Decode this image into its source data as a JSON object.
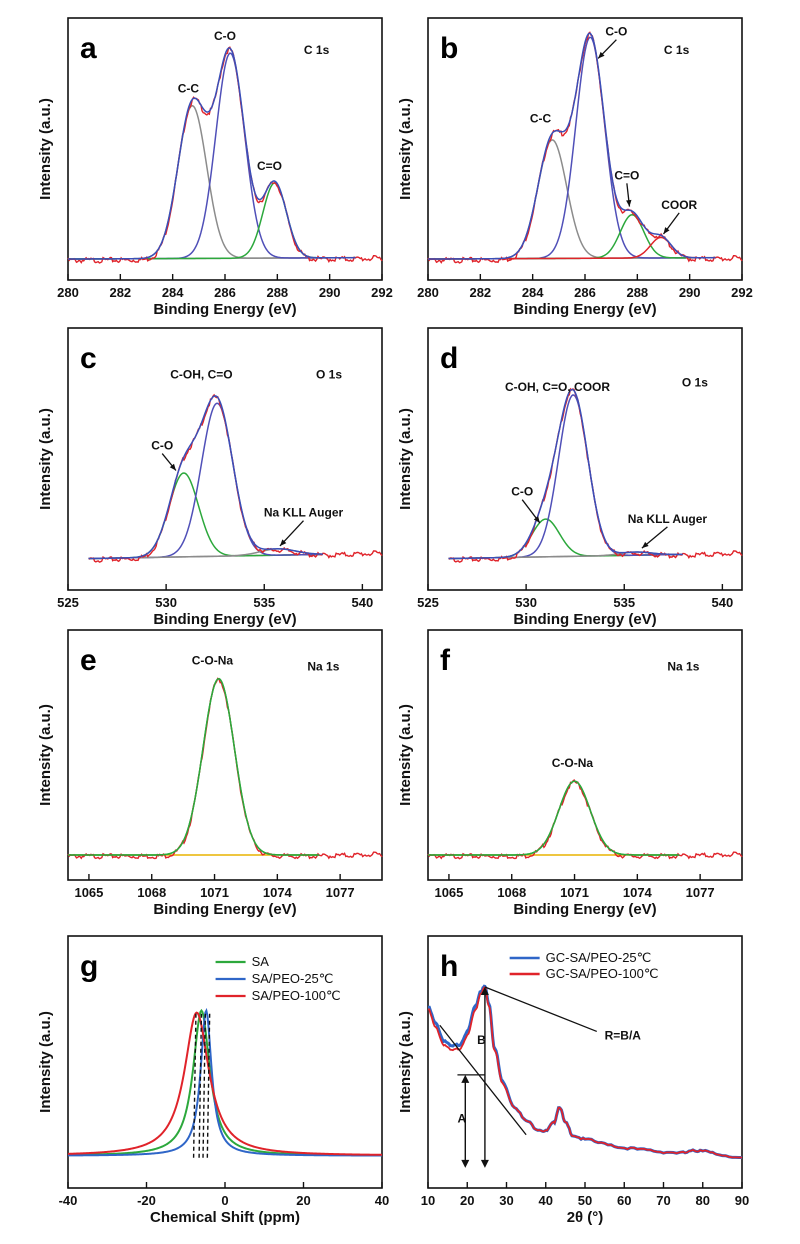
{
  "chart_data": [
    {
      "id": "a",
      "type": "line",
      "panel_label": "a",
      "title": "C 1s",
      "xlabel": "Binding Energy (eV)",
      "ylabel": "Intensity (a.u.)",
      "xlim": [
        280,
        292
      ],
      "ylim": [
        0,
        1.0
      ],
      "xticks": [
        280,
        282,
        284,
        286,
        288,
        290,
        292
      ],
      "xtick_labels": [
        "280",
        "282",
        "284",
        "286",
        "288",
        "290",
        "292"
      ],
      "baseline": {
        "x": [
          280,
          291
        ],
        "y": [
          0.0,
          0.006
        ]
      },
      "peaks": [
        {
          "name": "C-C",
          "center": 284.75,
          "height": 0.67,
          "width": 0.55,
          "color": "#8c8c8c"
        },
        {
          "name": "C-O",
          "center": 286.2,
          "height": 0.9,
          "width": 0.55,
          "color": "#5050b8"
        },
        {
          "name": "C=O",
          "center": 287.9,
          "height": 0.33,
          "width": 0.45,
          "color": "#2ca83c"
        }
      ],
      "envelope_color": "#3a4fb8",
      "raw_color": "#e0232a",
      "raw_range": [
        280,
        292
      ],
      "raw_tail_slope": 0.004,
      "annotations": [
        {
          "text": "C-C",
          "x": 284.6,
          "y": 0.73,
          "arrow": false
        },
        {
          "text": "C-O",
          "x": 286.0,
          "y": 0.96,
          "arrow": false
        },
        {
          "text": "C=O",
          "x": 287.7,
          "y": 0.39,
          "arrow": false
        },
        {
          "text": "C 1s",
          "x": 289.5,
          "y": 0.9,
          "arrow": false
        }
      ]
    },
    {
      "id": "b",
      "type": "line",
      "panel_label": "b",
      "title": "C 1s",
      "xlabel": "Binding Energy (eV)",
      "ylabel": "Intensity (a.u.)",
      "xlim": [
        280,
        292
      ],
      "ylim": [
        0,
        1.0
      ],
      "xticks": [
        280,
        282,
        284,
        286,
        288,
        290,
        292
      ],
      "xtick_labels": [
        "280",
        "282",
        "284",
        "286",
        "288",
        "290",
        "292"
      ],
      "baseline": {
        "x": [
          280,
          291
        ],
        "y": [
          0.0,
          0.006
        ]
      },
      "peaks": [
        {
          "name": "C-C",
          "center": 284.75,
          "height": 0.52,
          "width": 0.55,
          "color": "#8c8c8c"
        },
        {
          "name": "C-O",
          "center": 286.2,
          "height": 0.97,
          "width": 0.55,
          "color": "#5050b8"
        },
        {
          "name": "C=O",
          "center": 287.8,
          "height": 0.19,
          "width": 0.45,
          "color": "#2ca83c"
        },
        {
          "name": "COOR",
          "center": 288.9,
          "height": 0.09,
          "width": 0.4,
          "color": "#e0232a"
        }
      ],
      "envelope_color": "#3a4fb8",
      "raw_color": "#e0232a",
      "raw_range": [
        280,
        292
      ],
      "raw_tail_slope": 0.004,
      "annotations": [
        {
          "text": "C-C",
          "x": 284.3,
          "y": 0.6,
          "arrow": false
        },
        {
          "text": "C-O",
          "x": 287.2,
          "y": 0.98,
          "arrow": true,
          "ax": 286.5,
          "ay": 0.88
        },
        {
          "text": "C=O",
          "x": 287.6,
          "y": 0.35,
          "arrow": true,
          "ax": 287.7,
          "ay": 0.23
        },
        {
          "text": "COOR",
          "x": 289.6,
          "y": 0.22,
          "arrow": true,
          "ax": 289.0,
          "ay": 0.11
        },
        {
          "text": "C 1s",
          "x": 289.5,
          "y": 0.9,
          "arrow": false
        }
      ]
    },
    {
      "id": "c",
      "type": "line",
      "panel_label": "c",
      "title": "O 1s",
      "xlabel": "Binding Energy (eV)",
      "ylabel": "Intensity (a.u.)",
      "xlim": [
        525,
        541
      ],
      "ylim": [
        0,
        1.0
      ],
      "xticks": [
        525,
        530,
        535,
        540
      ],
      "xtick_labels": [
        "525",
        "530",
        "535",
        "540"
      ],
      "baseline": {
        "x": [
          526,
          538
        ],
        "y": [
          0.0,
          0.02
        ]
      },
      "peaks": [
        {
          "name": "C-O",
          "center": 530.9,
          "height": 0.4,
          "width": 0.75,
          "color": "#2ca83c"
        },
        {
          "name": "C-OH, C=O",
          "center": 532.6,
          "height": 0.73,
          "width": 0.8,
          "color": "#5050b8"
        },
        {
          "name": "Na KLL Auger",
          "center": 535.7,
          "height": 0.03,
          "width": 0.9,
          "color": "#8c8c8c"
        }
      ],
      "envelope_color": "#3a4fb8",
      "raw_color": "#e0232a",
      "raw_range": [
        526,
        541
      ],
      "raw_tail_slope": 0.004,
      "annotations": [
        {
          "text": "C-OH, C=O",
          "x": 531.8,
          "y": 0.86,
          "arrow": false
        },
        {
          "text": "O 1s",
          "x": 538.3,
          "y": 0.86,
          "arrow": false
        },
        {
          "text": "C-O",
          "x": 529.8,
          "y": 0.52,
          "arrow": true,
          "ax": 530.5,
          "ay": 0.42
        },
        {
          "text": "Na KLL Auger",
          "x": 537.0,
          "y": 0.2,
          "arrow": true,
          "ax": 535.8,
          "ay": 0.06
        }
      ]
    },
    {
      "id": "d",
      "type": "line",
      "panel_label": "d",
      "title": "O 1s",
      "xlabel": "Binding Energy (eV)",
      "ylabel": "Intensity (a.u.)",
      "xlim": [
        525,
        541
      ],
      "ylim": [
        0,
        1.0
      ],
      "xticks": [
        525,
        530,
        535,
        540
      ],
      "xtick_labels": [
        "525",
        "530",
        "535",
        "540"
      ],
      "baseline": {
        "x": [
          526,
          538
        ],
        "y": [
          0.0,
          0.02
        ]
      },
      "peaks": [
        {
          "name": "C-O",
          "center": 531.0,
          "height": 0.18,
          "width": 0.7,
          "color": "#2ca83c"
        },
        {
          "name": "C-OH, C=O, COOR",
          "center": 532.4,
          "height": 0.77,
          "width": 0.75,
          "color": "#5050b8"
        },
        {
          "name": "Na KLL Auger",
          "center": 535.6,
          "height": 0.015,
          "width": 0.8,
          "color": "#8c8c8c"
        }
      ],
      "envelope_color": "#3a4fb8",
      "raw_color": "#e0232a",
      "raw_range": [
        526,
        541
      ],
      "raw_tail_slope": 0.004,
      "annotations": [
        {
          "text": "C-OH, C=O, COOR",
          "x": 531.6,
          "y": 0.8,
          "arrow": false
        },
        {
          "text": "O 1s",
          "x": 538.6,
          "y": 0.82,
          "arrow": false
        },
        {
          "text": "C-O",
          "x": 529.8,
          "y": 0.3,
          "arrow": true,
          "ax": 530.7,
          "ay": 0.17
        },
        {
          "text": "Na KLL Auger",
          "x": 537.2,
          "y": 0.17,
          "arrow": true,
          "ax": 535.9,
          "ay": 0.05
        }
      ]
    },
    {
      "id": "e",
      "type": "line",
      "panel_label": "e",
      "title": "Na 1s",
      "xlabel": "Binding Energy (eV)",
      "ylabel": "Intensity (a.u.)",
      "xlim": [
        1064,
        1079
      ],
      "ylim": [
        0,
        1.0
      ],
      "xticks": [
        1065,
        1068,
        1071,
        1074,
        1077
      ],
      "xtick_labels": [
        "1065",
        "1068",
        "1071",
        "1074",
        "1077"
      ],
      "baseline": {
        "x": [
          1064,
          1076
        ],
        "y": [
          0.0,
          0.0
        ]
      },
      "peaks": [
        {
          "name": "C-O-Na",
          "center": 1071.2,
          "height": 0.86,
          "width": 0.75,
          "color": "#2ca83c"
        }
      ],
      "envelope_color": "#2ca83c",
      "raw_color": "#e0232a",
      "raw_range": [
        1064,
        1079
      ],
      "raw_tail_slope": 0.003,
      "annotations": [
        {
          "text": "C-O-Na",
          "x": 1070.9,
          "y": 0.93,
          "arrow": false
        },
        {
          "text": "Na 1s",
          "x": 1076.2,
          "y": 0.9,
          "arrow": false
        }
      ]
    },
    {
      "id": "f",
      "type": "line",
      "panel_label": "f",
      "title": "Na 1s",
      "xlabel": "Binding Energy (eV)",
      "ylabel": "Intensity (a.u.)",
      "xlim": [
        1064,
        1079
      ],
      "ylim": [
        0,
        1.0
      ],
      "xticks": [
        1065,
        1068,
        1071,
        1074,
        1077
      ],
      "xtick_labels": [
        "1065",
        "1068",
        "1071",
        "1074",
        "1077"
      ],
      "baseline": {
        "x": [
          1064,
          1076
        ],
        "y": [
          0.0,
          0.0
        ]
      },
      "peaks": [
        {
          "name": "C-O-Na",
          "center": 1071.0,
          "height": 0.36,
          "width": 0.75,
          "color": "#2ca83c"
        }
      ],
      "envelope_color": "#2ca83c",
      "raw_color": "#e0232a",
      "raw_range": [
        1064,
        1079
      ],
      "raw_tail_slope": 0.003,
      "annotations": [
        {
          "text": "C-O-Na",
          "x": 1070.9,
          "y": 0.43,
          "arrow": false
        },
        {
          "text": "Na 1s",
          "x": 1076.2,
          "y": 0.9,
          "arrow": false
        }
      ]
    },
    {
      "id": "g",
      "type": "line",
      "panel_label": "g",
      "xlabel": "Chemical Shift (ppm)",
      "ylabel": "Intensity (a.u.)",
      "xlim": [
        -40,
        40
      ],
      "ylim": [
        0,
        1.0
      ],
      "xticks": [
        -40,
        -20,
        0,
        20,
        40
      ],
      "xtick_labels": [
        "-40",
        "-20",
        "0",
        "20",
        "40"
      ],
      "series": [
        {
          "name": "SA",
          "center": -6.0,
          "height": 0.72,
          "width": 2.6,
          "color": "#2ca83c"
        },
        {
          "name": "SA/PEO-25℃",
          "center": -4.8,
          "height": 0.72,
          "width": 1.7,
          "color": "#2f66c8"
        },
        {
          "name": "SA/PEO-100℃",
          "center": -7.2,
          "height": 0.71,
          "width": 3.8,
          "color": "#e0232a"
        }
      ],
      "dashed_markers": [
        -8.0,
        -6.6,
        -5.6,
        -4.5
      ],
      "legend": [
        "SA",
        "SA/PEO-25℃",
        "SA/PEO-100℃"
      ],
      "legend_location": "top-right"
    },
    {
      "id": "h",
      "type": "line",
      "panel_label": "h",
      "xlabel": "2θ (°)",
      "ylabel": "Intensity (a.u.)",
      "xlim": [
        10,
        90
      ],
      "ylim": [
        0,
        1.0
      ],
      "xticks": [
        10,
        20,
        30,
        40,
        50,
        60,
        70,
        80,
        90
      ],
      "xtick_labels": [
        "10",
        "20",
        "30",
        "40",
        "50",
        "60",
        "70",
        "80",
        "90"
      ],
      "series": [
        {
          "name": "GC-SA/PEO-25℃",
          "color": "#2f66c8",
          "x": [
            10,
            12,
            14,
            16,
            18,
            20,
            22,
            23.5,
            24.5,
            25.5,
            27,
            29,
            32,
            35,
            38,
            40,
            42,
            43.5,
            45,
            47,
            50,
            55,
            60,
            65,
            70,
            75,
            78,
            80,
            82,
            85,
            90
          ],
          "y": [
            0.78,
            0.7,
            0.62,
            0.59,
            0.6,
            0.66,
            0.78,
            0.86,
            0.88,
            0.8,
            0.58,
            0.42,
            0.3,
            0.23,
            0.19,
            0.18,
            0.22,
            0.3,
            0.22,
            0.16,
            0.14,
            0.12,
            0.1,
            0.09,
            0.08,
            0.075,
            0.085,
            0.09,
            0.075,
            0.065,
            0.05
          ]
        },
        {
          "name": "GC-SA/PEO-100℃",
          "color": "#e0232a",
          "x": [
            10,
            12,
            14,
            16,
            18,
            20,
            22,
            23.5,
            24.5,
            25.5,
            27,
            29,
            32,
            35,
            38,
            40,
            42,
            43.5,
            45,
            47,
            50,
            55,
            60,
            65,
            70,
            75,
            78,
            80,
            82,
            85,
            90
          ],
          "y": [
            0.77,
            0.68,
            0.6,
            0.57,
            0.58,
            0.64,
            0.76,
            0.85,
            0.875,
            0.79,
            0.57,
            0.41,
            0.3,
            0.23,
            0.19,
            0.18,
            0.22,
            0.3,
            0.22,
            0.16,
            0.14,
            0.12,
            0.1,
            0.09,
            0.08,
            0.075,
            0.085,
            0.09,
            0.075,
            0.065,
            0.05
          ]
        }
      ],
      "legend": [
        "GC-SA/PEO-25℃",
        "GC-SA/PEO-100℃"
      ],
      "legend_location": "top-right",
      "annotations": [
        {
          "text": "R=B/A",
          "x": 55,
          "y": 0.62
        },
        {
          "text": "B",
          "x": 22.5,
          "y": 0.6
        },
        {
          "text": "A",
          "x": 17.5,
          "y": 0.22
        }
      ],
      "construction": {
        "peak": [
          24.5,
          0.875
        ],
        "tangent_line": [
          [
            13,
            0.69
          ],
          [
            35,
            0.16
          ]
        ],
        "A_arrow": {
          "x": 19.5,
          "y": [
            0.0,
            0.45
          ]
        },
        "B_arrow": {
          "x": 24.5,
          "y": [
            0.0,
            0.875
          ]
        },
        "hline": {
          "y": 0.45,
          "x": [
            17.5,
            24.5
          ]
        },
        "ratio_line": [
          [
            24.5,
            0.875
          ],
          [
            53,
            0.66
          ]
        ]
      }
    }
  ]
}
